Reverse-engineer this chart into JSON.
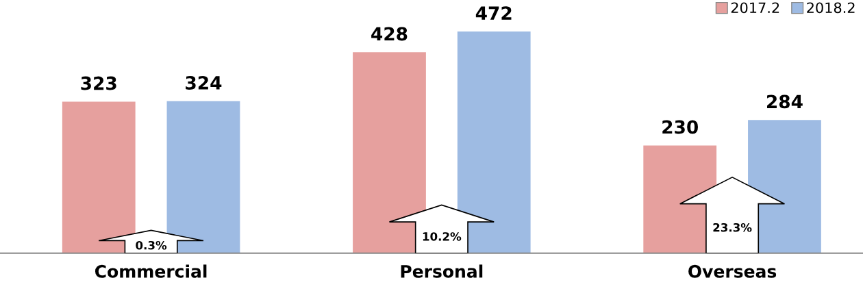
{
  "chart_data": {
    "type": "bar",
    "categories": [
      "Commercial",
      "Personal",
      "Overseas"
    ],
    "series": [
      {
        "name": "2017.2",
        "color": "#e6a09e",
        "values": [
          323,
          428,
          230
        ]
      },
      {
        "name": "2018.2",
        "color": "#9ebbe3",
        "values": [
          324,
          472,
          284
        ]
      }
    ],
    "data_labels": true,
    "legend": "top right",
    "grid": false,
    "annotations": [
      "0.3%",
      "10.2%",
      "23.3%"
    ]
  }
}
